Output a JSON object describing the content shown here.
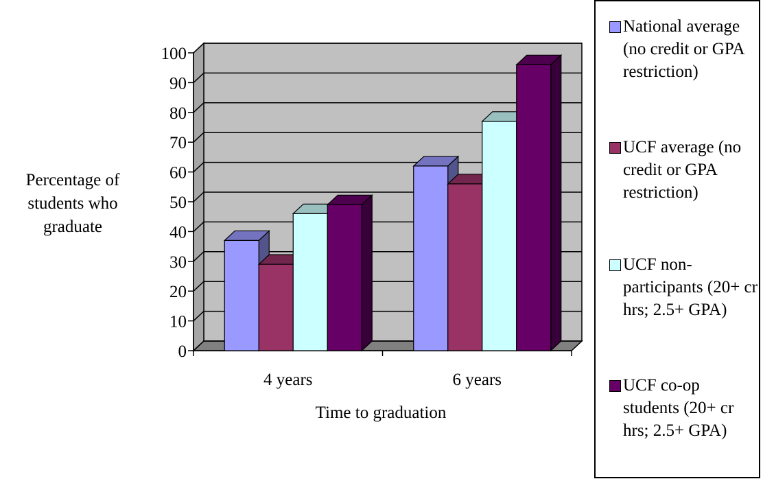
{
  "chart_data": {
    "type": "bar",
    "categories": [
      "4 years",
      "6 years"
    ],
    "series": [
      {
        "name": "National average (no credit or GPA restriction)",
        "values": [
          37,
          62
        ],
        "color": "#9999ff"
      },
      {
        "name": "UCF average (no credit or GPA restriction)",
        "values": [
          29,
          56
        ],
        "color": "#993366"
      },
      {
        "name": "UCF non-participants (20+ cr hrs; 2.5+ GPA)",
        "values": [
          46,
          77
        ],
        "color": "#ccffff"
      },
      {
        "name": "UCF co-op students (20+ cr hrs; 2.5+ GPA)",
        "values": [
          49,
          96
        ],
        "color": "#660066"
      }
    ],
    "title": "",
    "xlabel": "Time to graduation",
    "ylabel": "Percentage of students who graduate",
    "ylim": [
      0,
      100
    ],
    "yticks": [
      0,
      10,
      20,
      30,
      40,
      50,
      60,
      70,
      80,
      90,
      100
    ],
    "grid": true,
    "legend": "right",
    "three_d": true,
    "plot_background": "#c0c0c0"
  }
}
